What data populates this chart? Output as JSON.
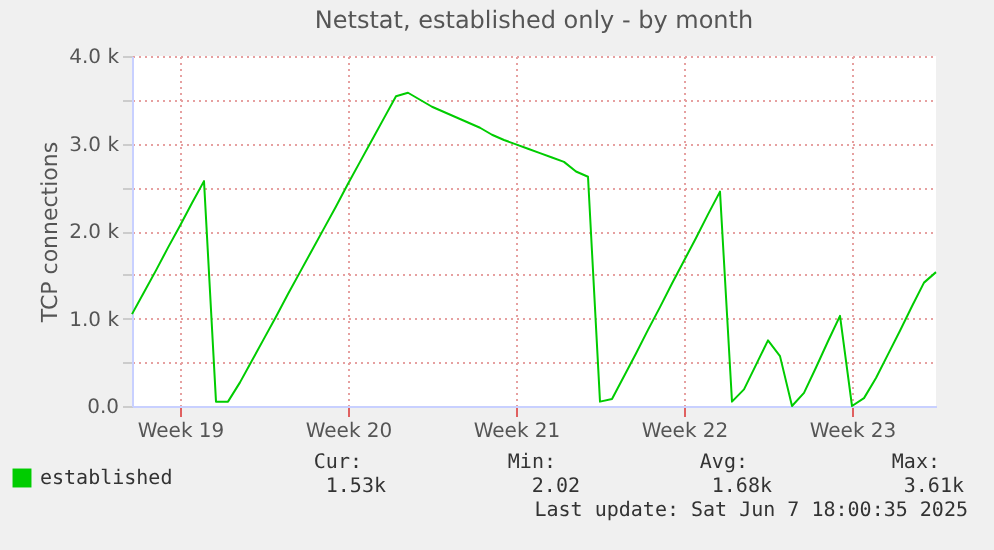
{
  "chart_data": {
    "type": "line",
    "title": "Netstat, established only - by month",
    "ylabel": "TCP connections",
    "categories": [
      null,
      null,
      null,
      null,
      "Week 19",
      null,
      null,
      null,
      null,
      null,
      null,
      null,
      null,
      null,
      null,
      null,
      null,
      null,
      "Week 20",
      null,
      null,
      null,
      null,
      null,
      null,
      null,
      null,
      null,
      null,
      null,
      null,
      null,
      "Week 21",
      null,
      null,
      null,
      null,
      null,
      null,
      null,
      null,
      null,
      null,
      null,
      null,
      null,
      "Week 22",
      null,
      null,
      null,
      null,
      null,
      null,
      null,
      null,
      null,
      null,
      null,
      null,
      null,
      "Week 23",
      null,
      null,
      null,
      null,
      null,
      null,
      null
    ],
    "series": [
      {
        "name": "established",
        "color": "#00cc00",
        "values": [
          1050,
          1300,
          1550,
          1810,
          2060,
          2320,
          2570,
          50,
          50,
          270,
          520,
          770,
          1020,
          1280,
          1530,
          1780,
          2030,
          2280,
          2540,
          2790,
          3040,
          3290,
          3540,
          3580,
          3500,
          3420,
          3360,
          3300,
          3240,
          3180,
          3100,
          3040,
          2990,
          2940,
          2890,
          2840,
          2790,
          2680,
          2620,
          50,
          80,
          340,
          600,
          870,
          1130,
          1400,
          1660,
          1920,
          2190,
          2450,
          50,
          190,
          470,
          750,
          570,
          0,
          150,
          440,
          740,
          1030,
          0,
          90,
          320,
          590,
          860,
          1140,
          1410,
          1530
        ]
      }
    ],
    "ylim": [
      0,
      4000
    ],
    "yticks": [
      {
        "value": 0,
        "label": "0.0"
      },
      {
        "value": 500,
        "label": null
      },
      {
        "value": 1000,
        "label": "1.0 k"
      },
      {
        "value": 1500,
        "label": null
      },
      {
        "value": 2000,
        "label": "2.0 k"
      },
      {
        "value": 2500,
        "label": null
      },
      {
        "value": 3000,
        "label": "3.0 k"
      },
      {
        "value": 3500,
        "label": null
      },
      {
        "value": 4000,
        "label": "4.0 k"
      }
    ],
    "grid": true,
    "legend": "bottom left",
    "line_style": "solid",
    "marker": "none",
    "annotations": [
      "Cur:",
      "Min:",
      "Avg:",
      "Max:",
      "1.53k",
      "2.02",
      "1.68k",
      "3.61k",
      "Last update: Sat Jun  7 18:00:35 2025"
    ]
  }
}
